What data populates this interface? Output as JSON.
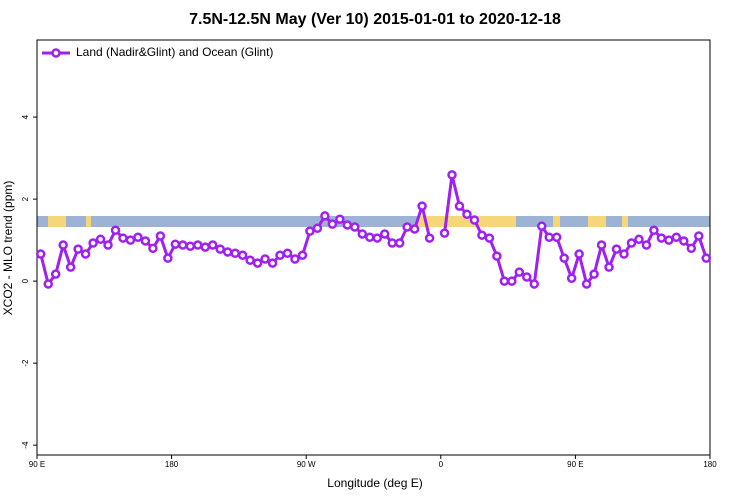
{
  "chart_data": {
    "type": "line",
    "title": "7.5N-12.5N May (Ver 10)   2015-01-01 to 2020-12-18",
    "x_label": "Longitude (deg E)",
    "y_label": "XCO2 - MLO trend (ppm)",
    "xlim": [
      90,
      540
    ],
    "xticks": [
      {
        "value": 90,
        "label": "90 E"
      },
      {
        "value": 180,
        "label": "180"
      },
      {
        "value": 270,
        "label": "90 W"
      },
      {
        "value": 360,
        "label": "0"
      },
      {
        "value": 450,
        "label": "90 E"
      },
      {
        "value": 540,
        "label": "180"
      }
    ],
    "ylim": [
      -4.24,
      5.88
    ],
    "yticks": [
      4,
      2,
      0,
      -2,
      -4
    ],
    "legend": "top-left",
    "x": [
      92.5,
      97.5,
      102.5,
      107.5,
      112.5,
      117.5,
      122.5,
      127.5,
      132.5,
      137.5,
      142.5,
      147.5,
      152.5,
      157.5,
      162.5,
      167.5,
      172.5,
      177.5,
      182.5,
      187.5,
      192.5,
      197.5,
      202.5,
      207.5,
      212.5,
      217.5,
      222.5,
      227.5,
      232.5,
      237.5,
      242.5,
      247.5,
      252.5,
      257.5,
      262.5,
      267.5,
      272.5,
      277.5,
      282.5,
      287.5,
      292.5,
      297.5,
      302.5,
      307.5,
      312.5,
      317.5,
      322.5,
      327.5,
      332.5,
      337.5,
      342.5,
      347.5,
      352.5,
      357.5,
      362.5,
      367.5,
      372.5,
      377.5,
      382.5,
      387.5,
      392.5,
      397.5,
      402.5,
      407.5,
      412.5,
      417.5,
      422.5,
      427.5,
      432.5,
      437.5,
      442.5,
      447.5,
      452.5,
      457.5,
      462.5,
      467.5,
      472.5,
      477.5,
      482.5,
      487.5,
      492.5,
      497.5,
      502.5,
      507.5,
      512.5,
      517.5,
      522.5,
      527.5,
      532.5,
      537.5
    ],
    "series": [
      {
        "name": "Land (Nadir&Glint) and Ocean (Glint)",
        "color": "#a020f0",
        "values": [
          0.66,
          -0.07,
          0.17,
          0.88,
          0.34,
          0.78,
          0.66,
          0.93,
          1.02,
          0.88,
          1.24,
          1.05,
          1.0,
          1.07,
          0.98,
          0.8,
          1.1,
          0.56,
          0.9,
          0.88,
          0.85,
          0.88,
          0.83,
          0.88,
          0.78,
          0.71,
          0.68,
          0.63,
          0.51,
          0.44,
          0.54,
          0.44,
          0.63,
          0.68,
          0.54,
          0.63,
          1.22,
          1.29,
          1.59,
          1.39,
          1.51,
          1.37,
          1.32,
          1.15,
          1.07,
          1.05,
          1.15,
          0.93,
          0.93,
          1.32,
          1.27,
          1.83,
          1.05,
          null,
          1.17,
          2.59,
          1.83,
          1.63,
          1.49,
          1.12,
          1.05,
          0.61,
          0,
          0,
          0.22,
          0.1,
          -0.07,
          1.34,
          1.07,
          1.07,
          0.56,
          0.07,
          0.66,
          -0.07,
          0.17,
          0.88,
          0.34,
          0.78,
          0.66,
          0.93,
          1.02,
          0.88,
          1.24,
          1.05,
          1.0,
          1.07,
          0.98,
          0.8,
          1.1,
          0.56
        ]
      }
    ]
  }
}
